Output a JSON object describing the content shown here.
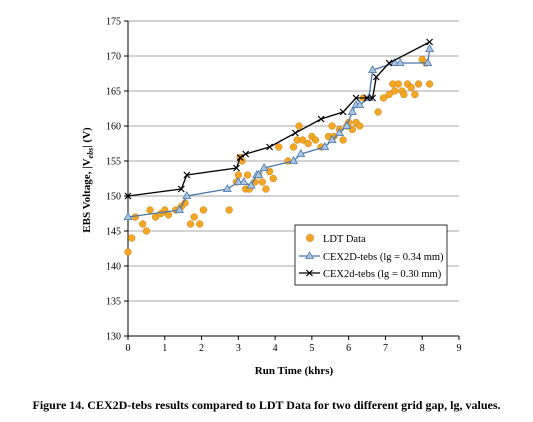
{
  "chart_data": {
    "type": "scatter",
    "xlabel": "Run Time (khrs)",
    "ylabel_main": "EBS Voltage, |V",
    "ylabel_sub": "ebs",
    "ylabel_end": "| (V)",
    "xlim": [
      0,
      9
    ],
    "ylim": [
      130,
      175
    ],
    "xticks": [
      0,
      1,
      2,
      3,
      4,
      5,
      6,
      7,
      8,
      9
    ],
    "yticks": [
      130,
      135,
      140,
      145,
      150,
      155,
      160,
      165,
      170,
      175
    ],
    "grid": "horizontal",
    "legend_position": "center-right",
    "series": [
      {
        "name": "LDT Data",
        "kind": "points",
        "color": "#F5A623",
        "x": [
          0.0,
          0.1,
          0.2,
          0.4,
          0.5,
          0.6,
          0.75,
          0.9,
          1.0,
          1.1,
          1.3,
          1.45,
          1.55,
          1.7,
          1.8,
          1.95,
          2.05,
          2.75,
          2.95,
          3.0,
          3.05,
          3.1,
          3.2,
          3.25,
          3.3,
          3.45,
          3.55,
          3.65,
          3.75,
          3.85,
          3.95,
          4.1,
          4.35,
          4.5,
          4.6,
          4.65,
          4.75,
          4.9,
          5.0,
          5.1,
          5.25,
          5.45,
          5.55,
          5.6,
          5.75,
          5.85,
          5.95,
          6.0,
          6.1,
          6.2,
          6.3,
          6.4,
          6.8,
          6.95,
          7.1,
          7.2,
          7.25,
          7.35,
          7.45,
          7.5,
          7.6,
          7.7,
          7.8,
          7.9,
          8.0,
          8.1,
          8.2
        ],
        "y": [
          142,
          144,
          147,
          146,
          145,
          148,
          147,
          147.5,
          148,
          147.3,
          148,
          148.5,
          149,
          146,
          147,
          146,
          148,
          148,
          152,
          153,
          155.5,
          155,
          151,
          153,
          151,
          152,
          153,
          152,
          151,
          153.5,
          152.5,
          157,
          155,
          157,
          158,
          160,
          158,
          157.5,
          158.5,
          158,
          157,
          158.5,
          160,
          158.5,
          159.5,
          158,
          160,
          160.5,
          159.5,
          160.5,
          160,
          164,
          162,
          164,
          164.5,
          166,
          165,
          166,
          165,
          164.5,
          166,
          165.5,
          164.5,
          166,
          169.5,
          169,
          166
        ]
      },
      {
        "name": "CEX2D-tebs (lg = 0.34 mm)",
        "kind": "line",
        "marker": "triangle",
        "color": "#4A78A8",
        "x": [
          0.0,
          1.4,
          1.6,
          2.7,
          3.0,
          3.15,
          3.35,
          3.5,
          3.55,
          3.7,
          4.5,
          4.7,
          5.35,
          5.55,
          5.75,
          5.95,
          6.1,
          6.2,
          6.3,
          6.55,
          6.65,
          7.25,
          7.4,
          8.15,
          8.2
        ],
        "y": [
          147,
          148,
          150,
          151,
          152,
          152,
          151.5,
          153,
          153,
          154,
          155,
          156,
          157,
          158,
          159,
          160,
          162,
          163,
          163,
          164,
          168,
          169,
          169,
          169,
          171
        ]
      },
      {
        "name": "CEX2d-tebs (lg = 0.30 mm)",
        "kind": "line",
        "marker": "x",
        "color": "#000000",
        "x": [
          0.0,
          1.45,
          1.6,
          2.95,
          3.05,
          3.2,
          3.85,
          4.55,
          5.25,
          5.85,
          6.2,
          6.5,
          6.65,
          6.75,
          7.1,
          8.2
        ],
        "y": [
          150,
          151,
          153,
          154,
          155.5,
          156,
          157,
          159,
          161,
          162,
          164,
          164,
          164,
          167,
          169,
          172
        ]
      }
    ]
  },
  "legend_labels": [
    "LDT Data",
    "CEX2D-tebs (lg = 0.34 mm)",
    "CEX2d-tebs (lg = 0.30 mm)"
  ],
  "caption": "Figure 14. CEX2D-tebs results compared to LDT Data for two different grid gap, lg, values."
}
